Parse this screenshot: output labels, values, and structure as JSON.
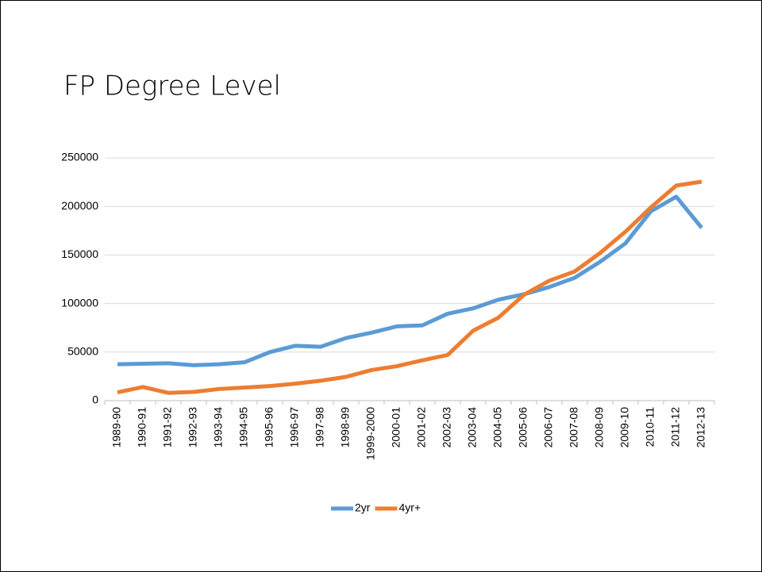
{
  "chart_data": {
    "type": "line",
    "title": "FP Degree Level",
    "categories": [
      "1989-90",
      "1990-91",
      "1991-92",
      "1992-93",
      "1993-94",
      "1994-95",
      "1995-96",
      "1996-97",
      "1997-98",
      "1998-99",
      "1999-2000",
      "2000-01",
      "2001-02",
      "2002-03",
      "2003-04",
      "2004-05",
      "2005-06",
      "2006-07",
      "2007-08",
      "2008-09",
      "2009-10",
      "2010-11",
      "2011-12",
      "2012-13"
    ],
    "series": [
      {
        "name": "2yr",
        "color": "#5b9bd5",
        "values": [
          37500,
          38000,
          38500,
          36500,
          37500,
          39500,
          50000,
          56500,
          55500,
          64500,
          70000,
          76500,
          77500,
          89500,
          95000,
          104000,
          109500,
          117000,
          126500,
          143000,
          162000,
          195000,
          210000,
          178000
        ]
      },
      {
        "name": "4yr+",
        "color": "#ed7d31",
        "values": [
          8500,
          14000,
          8000,
          9000,
          12000,
          13500,
          15000,
          17500,
          20500,
          24500,
          31500,
          35500,
          41500,
          47000,
          72000,
          85500,
          109000,
          123500,
          133000,
          152000,
          174000,
          199000,
          221500,
          225500
        ]
      }
    ],
    "ylim": [
      0,
      250000
    ],
    "yticks": [
      0,
      50000,
      100000,
      150000,
      200000,
      250000
    ],
    "grid": true,
    "legend": "bottom"
  }
}
